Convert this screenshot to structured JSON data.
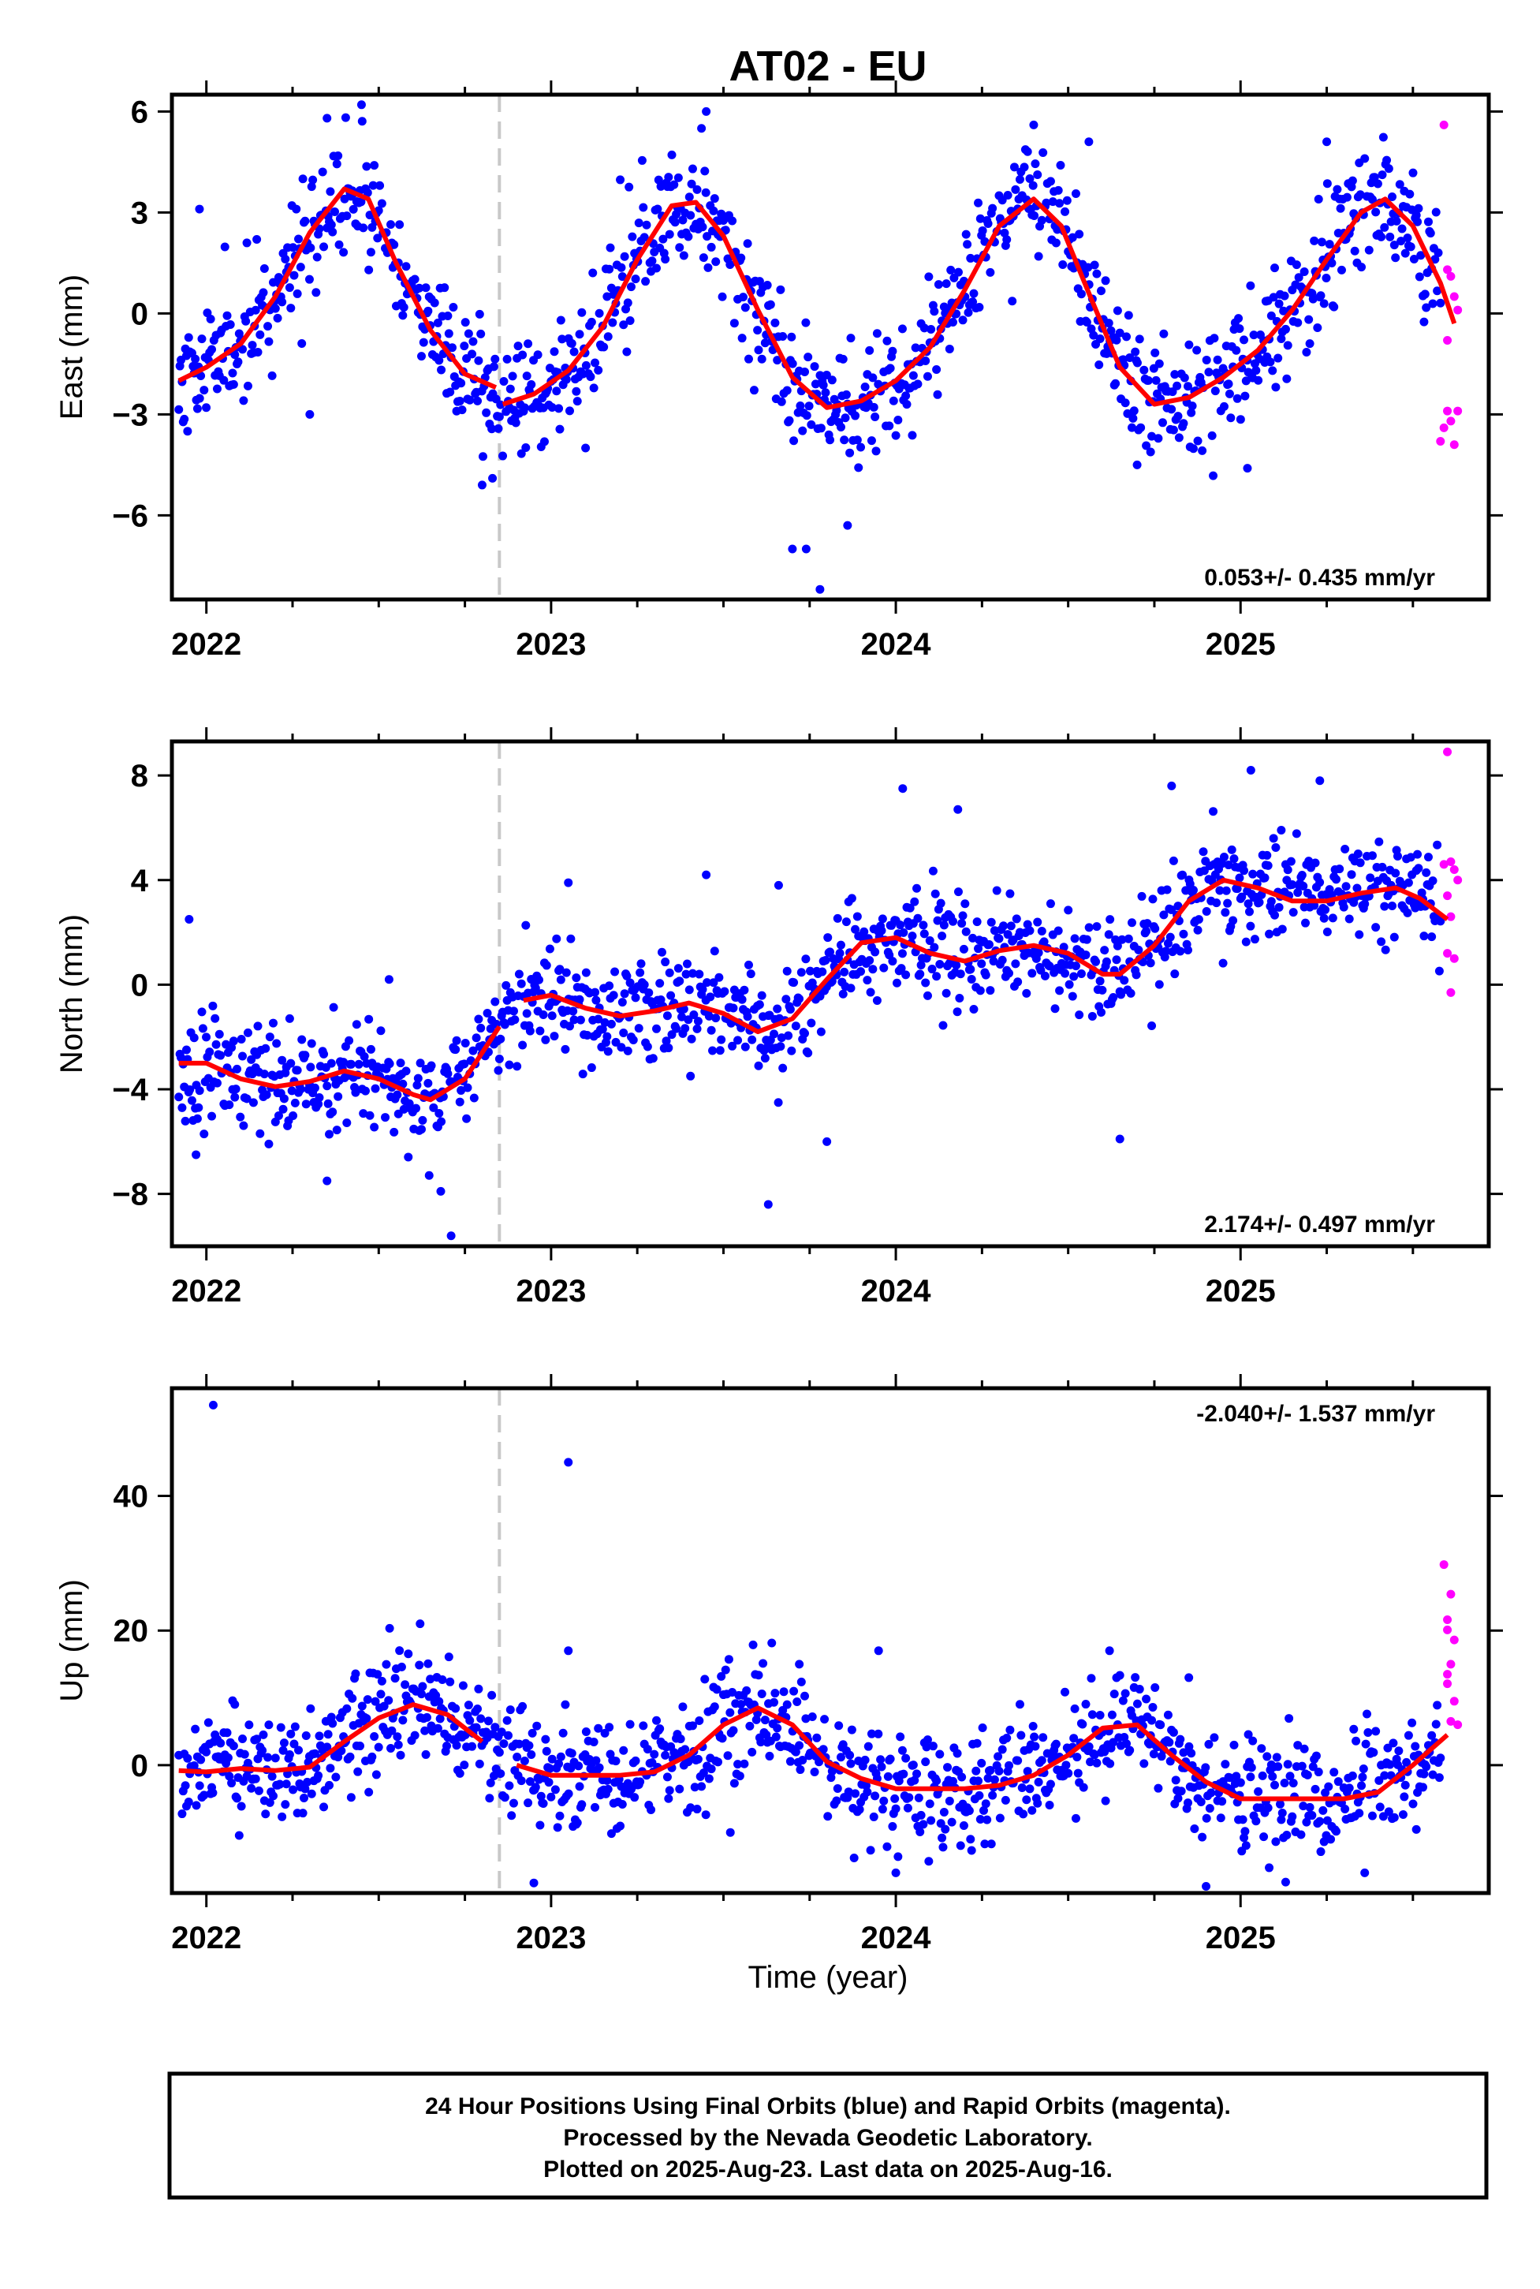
{
  "title": "AT02 - EU",
  "xlabel": "Time (year)",
  "footer": [
    "24 Hour Positions Using Final Orbits (blue) and Rapid Orbits (magenta).",
    "Processed by the Nevada Geodetic Laboratory.",
    "Plotted on 2025-Aug-23. Last data on 2025-Aug-16."
  ],
  "colors": {
    "final": "#0000ff",
    "rapid": "#ff00ff",
    "fit": "#ff0000",
    "event_line": "#c8c8c8"
  },
  "chart_data": [
    {
      "type": "scatter",
      "ylabel": "East (mm)",
      "rate": "0.053+/- 0.435 mm/yr",
      "xlim": [
        2021.9,
        2025.72
      ],
      "ylim": [
        -8.5,
        6.5
      ],
      "xticks": [
        2022,
        2023,
        2024,
        2025
      ],
      "xtick_labels": [
        "2022",
        "2023",
        "2024",
        "2025"
      ],
      "yticks": [
        -6,
        -3,
        0,
        3,
        6
      ],
      "ytick_labels": [
        "−6",
        "−3",
        "0",
        "3",
        "6"
      ],
      "event_line": 2022.85,
      "fit_line": {
        "x": [
          2021.92,
          2022.0,
          2022.1,
          2022.2,
          2022.3,
          2022.4,
          2022.47,
          2022.55,
          2022.65,
          2022.75,
          2022.84,
          2022.86,
          2022.95,
          2023.05,
          2023.15,
          2023.25,
          2023.35,
          2023.42,
          2023.5,
          2023.6,
          2023.7,
          2023.8,
          2023.9,
          2024.0,
          2024.1,
          2024.2,
          2024.3,
          2024.4,
          2024.48,
          2024.56,
          2024.65,
          2024.75,
          2024.85,
          2024.95,
          2025.05,
          2025.15,
          2025.25,
          2025.35,
          2025.42,
          2025.5,
          2025.58,
          2025.62
        ],
        "y": [
          -2.0,
          -1.6,
          -0.9,
          0.5,
          2.4,
          3.7,
          3.4,
          1.5,
          -0.5,
          -1.8,
          -2.2,
          -2.7,
          -2.4,
          -1.7,
          -0.4,
          1.6,
          3.2,
          3.3,
          2.3,
          0.1,
          -1.9,
          -2.8,
          -2.6,
          -2.0,
          -1.0,
          0.7,
          2.6,
          3.4,
          2.6,
          0.6,
          -1.6,
          -2.7,
          -2.5,
          -1.9,
          -1.1,
          0.1,
          1.6,
          3.0,
          3.4,
          2.6,
          0.9,
          -0.3
        ]
      },
      "scatter_model": {
        "x0": 2021.92,
        "x1": 2025.58,
        "n": 1150,
        "seed": 11,
        "noise": 0.9,
        "outliers": [
          [
            2021.98,
            3.1
          ],
          [
            2022.35,
            5.8
          ],
          [
            2022.45,
            6.2
          ],
          [
            2022.8,
            -5.1
          ],
          [
            2022.83,
            -4.9
          ],
          [
            2023.45,
            6.0
          ],
          [
            2023.7,
            -7.0
          ],
          [
            2023.74,
            -7.0
          ],
          [
            2023.78,
            -8.2
          ],
          [
            2023.86,
            -6.3
          ],
          [
            2024.4,
            5.6
          ],
          [
            2024.56,
            5.1
          ],
          [
            2024.7,
            -4.5
          ],
          [
            2025.02,
            -4.6
          ],
          [
            2025.25,
            5.1
          ],
          [
            2022.3,
            -3.0
          ],
          [
            2023.1,
            -4.0
          ]
        ]
      },
      "rapid": {
        "x": [
          2025.59,
          2025.6,
          2025.61,
          2025.6,
          2025.62,
          2025.63,
          2025.58,
          2025.59,
          2025.6,
          2025.61,
          2025.62,
          2025.63
        ],
        "y": [
          5.6,
          1.3,
          1.1,
          -0.8,
          0.5,
          0.1,
          -3.8,
          -3.4,
          -2.9,
          -3.2,
          -3.9,
          -2.9
        ]
      }
    },
    {
      "type": "scatter",
      "ylabel": "North (mm)",
      "rate": "2.174+/- 0.497 mm/yr",
      "xlim": [
        2021.9,
        2025.72
      ],
      "ylim": [
        -10,
        9.3
      ],
      "xticks": [
        2022,
        2023,
        2024,
        2025
      ],
      "xtick_labels": [
        "2022",
        "2023",
        "2024",
        "2025"
      ],
      "yticks": [
        -8,
        -4,
        0,
        4,
        8
      ],
      "ytick_labels": [
        "−8",
        "−4",
        "0",
        "4",
        "8"
      ],
      "event_line": 2022.85,
      "fit_line": {
        "x": [
          2021.92,
          2022.0,
          2022.1,
          2022.2,
          2022.3,
          2022.4,
          2022.5,
          2022.6,
          2022.65,
          2022.75,
          2022.85,
          2022.92,
          2023.0,
          2023.1,
          2023.2,
          2023.3,
          2023.4,
          2023.5,
          2023.6,
          2023.7,
          2023.8,
          2023.9,
          2024.0,
          2024.1,
          2024.2,
          2024.3,
          2024.4,
          2024.5,
          2024.6,
          2024.65,
          2024.75,
          2024.85,
          2024.95,
          2025.05,
          2025.15,
          2025.25,
          2025.35,
          2025.45,
          2025.52,
          2025.6
        ],
        "y": [
          -3.0,
          -3.0,
          -3.6,
          -3.9,
          -3.7,
          -3.3,
          -3.6,
          -4.2,
          -4.4,
          -3.6,
          -1.6,
          -0.6,
          -0.4,
          -0.9,
          -1.2,
          -1.0,
          -0.7,
          -1.1,
          -1.8,
          -1.3,
          0.2,
          1.6,
          1.8,
          1.2,
          0.9,
          1.3,
          1.5,
          1.2,
          0.4,
          0.4,
          1.5,
          3.2,
          4.0,
          3.7,
          3.2,
          3.2,
          3.5,
          3.7,
          3.3,
          2.5
        ]
      },
      "scatter_model": {
        "x0": 2021.92,
        "x1": 2025.58,
        "n": 1150,
        "seed": 23,
        "noise": 1.0,
        "outliers": [
          [
            2021.95,
            2.5
          ],
          [
            2021.97,
            -6.5
          ],
          [
            2022.35,
            -7.5
          ],
          [
            2022.68,
            -7.9
          ],
          [
            2022.71,
            -9.6
          ],
          [
            2023.05,
            3.9
          ],
          [
            2023.45,
            4.2
          ],
          [
            2023.63,
            -8.4
          ],
          [
            2023.66,
            3.8
          ],
          [
            2023.8,
            -6.0
          ],
          [
            2024.02,
            7.5
          ],
          [
            2024.18,
            6.7
          ],
          [
            2024.65,
            -5.9
          ],
          [
            2024.8,
            7.6
          ],
          [
            2025.03,
            8.2
          ],
          [
            2025.23,
            7.8
          ],
          [
            2022.53,
            0.2
          ]
        ]
      },
      "rapid": {
        "x": [
          2025.6,
          2025.62,
          2025.59,
          2025.61,
          2025.63,
          2025.6,
          2025.61,
          2025.6,
          2025.62,
          2025.61
        ],
        "y": [
          8.9,
          4.4,
          4.6,
          4.7,
          4.0,
          3.4,
          2.6,
          1.2,
          1.0,
          -0.3
        ]
      }
    },
    {
      "type": "scatter",
      "ylabel": "Up (mm)",
      "rate": "-2.040+/- 1.537 mm/yr",
      "xlim": [
        2021.9,
        2025.72
      ],
      "ylim": [
        -19,
        56
      ],
      "xticks": [
        2022,
        2023,
        2024,
        2025
      ],
      "xtick_labels": [
        "2022",
        "2023",
        "2024",
        "2025"
      ],
      "yticks": [
        0,
        20,
        40
      ],
      "ytick_labels": [
        "0",
        "20",
        "40"
      ],
      "event_line": 2022.85,
      "fit_line": {
        "x": [
          2021.92,
          2022.0,
          2022.1,
          2022.2,
          2022.3,
          2022.4,
          2022.5,
          2022.6,
          2022.7,
          2022.8,
          2022.9,
          2023.0,
          2023.1,
          2023.2,
          2023.3,
          2023.4,
          2023.5,
          2023.6,
          2023.7,
          2023.8,
          2023.9,
          2024.0,
          2024.1,
          2024.2,
          2024.3,
          2024.4,
          2024.5,
          2024.6,
          2024.7,
          2024.8,
          2024.9,
          2025.0,
          2025.1,
          2025.2,
          2025.3,
          2025.4,
          2025.5,
          2025.6
        ],
        "y": [
          -0.8,
          -1.0,
          -0.5,
          -0.8,
          -0.3,
          3.5,
          7.0,
          9.0,
          7.5,
          3.5,
          0.0,
          -1.5,
          -1.5,
          -1.5,
          -1.0,
          1.5,
          6.0,
          8.5,
          6.0,
          0.5,
          -2.0,
          -3.5,
          -3.5,
          -3.5,
          -3.0,
          -1.5,
          1.5,
          5.5,
          6.0,
          1.5,
          -2.5,
          -5.0,
          -5.0,
          -5.0,
          -5.0,
          -4.0,
          0.0,
          4.5
        ]
      },
      "scatter_model": {
        "x0": 2021.92,
        "x1": 2025.58,
        "n": 1150,
        "seed": 37,
        "noise": 4.2,
        "outliers": [
          [
            2022.02,
            53.5
          ],
          [
            2023.05,
            45.0
          ],
          [
            2023.05,
            17.0
          ],
          [
            2023.95,
            17.0
          ],
          [
            2024.0,
            -16.0
          ],
          [
            2024.85,
            13.0
          ],
          [
            2024.9,
            -18.0
          ],
          [
            2022.95,
            -17.5
          ],
          [
            2023.52,
            -10.0
          ],
          [
            2022.62,
            21.0
          ],
          [
            2023.72,
            15.0
          ],
          [
            2024.62,
            17.0
          ]
        ]
      },
      "rapid": {
        "x": [
          2025.59,
          2025.61,
          2025.6,
          2025.6,
          2025.62,
          2025.61,
          2025.6,
          2025.62,
          2025.61,
          2025.63,
          2025.6
        ],
        "y": [
          29.8,
          25.4,
          21.6,
          20.1,
          18.6,
          15.0,
          12.1,
          9.5,
          6.5,
          6.0,
          13.5
        ]
      }
    }
  ]
}
